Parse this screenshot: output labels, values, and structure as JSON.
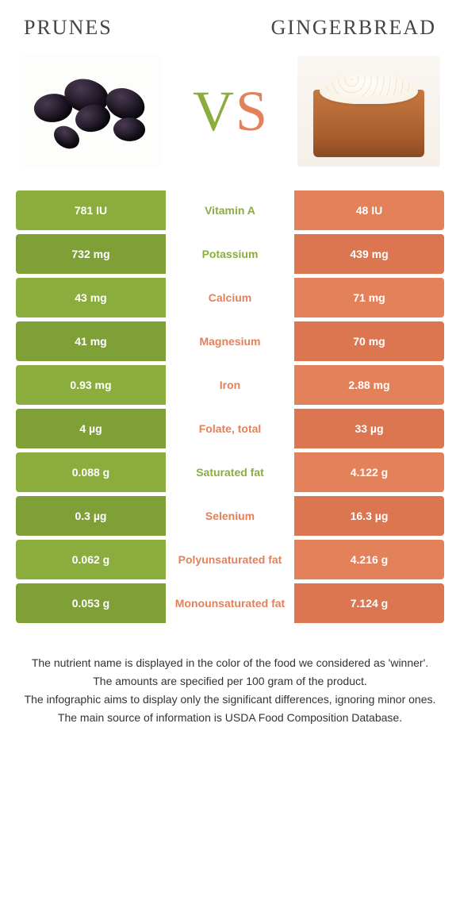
{
  "colors": {
    "left_food": "#8aad3e",
    "right_food": "#e2815a",
    "left_dark": "#7fa037",
    "right_dark": "#db7650"
  },
  "header": {
    "left_title": "PRUNES",
    "right_title": "GINGERBREAD"
  },
  "vs": {
    "v": "V",
    "s": "S"
  },
  "rows": [
    {
      "left": "781 IU",
      "label": "Vitamin A",
      "right": "48 IU",
      "winner": "left"
    },
    {
      "left": "732 mg",
      "label": "Potassium",
      "right": "439 mg",
      "winner": "left"
    },
    {
      "left": "43 mg",
      "label": "Calcium",
      "right": "71 mg",
      "winner": "right"
    },
    {
      "left": "41 mg",
      "label": "Magnesium",
      "right": "70 mg",
      "winner": "right"
    },
    {
      "left": "0.93 mg",
      "label": "Iron",
      "right": "2.88 mg",
      "winner": "right"
    },
    {
      "left": "4 µg",
      "label": "Folate, total",
      "right": "33 µg",
      "winner": "right"
    },
    {
      "left": "0.088 g",
      "label": "Saturated fat",
      "right": "4.122 g",
      "winner": "left"
    },
    {
      "left": "0.3 µg",
      "label": "Selenium",
      "right": "16.3 µg",
      "winner": "right"
    },
    {
      "left": "0.062 g",
      "label": "Polyunsaturated fat",
      "right": "4.216 g",
      "winner": "right"
    },
    {
      "left": "0.053 g",
      "label": "Monounsaturated fat",
      "right": "7.124 g",
      "winner": "right"
    }
  ],
  "footer": {
    "l1": "The nutrient name is displayed in the color of the food we considered as 'winner'.",
    "l2": "The amounts are specified per 100 gram of the product.",
    "l3": "The infographic aims to display only the significant differences, ignoring minor ones.",
    "l4": "The main source of information is USDA Food Composition Database."
  }
}
